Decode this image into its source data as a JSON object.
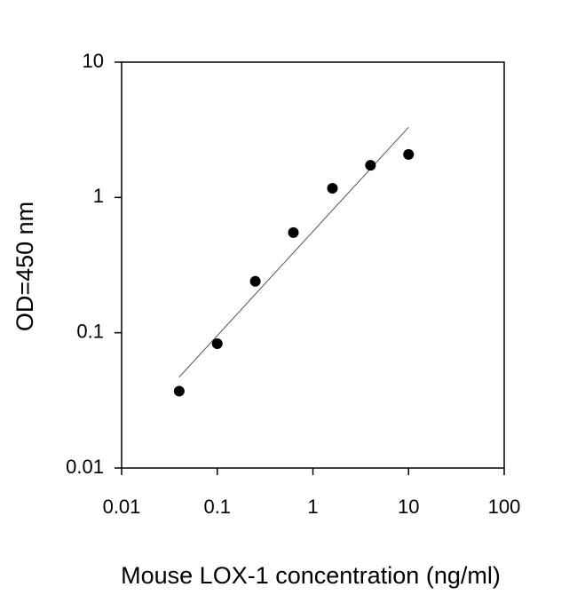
{
  "chart_data": {
    "type": "scatter",
    "x_label": "Mouse LOX-1 concentration (ng/ml)",
    "y_label": "OD=450 nm",
    "x": [
      0.04,
      0.1,
      0.25,
      0.625,
      1.6,
      4,
      10
    ],
    "values": [
      0.037,
      0.083,
      0.24,
      0.55,
      1.17,
      1.73,
      2.08
    ],
    "color": "#000000",
    "fit_line": {
      "x": [
        0.04,
        10
      ],
      "y": [
        0.047,
        3.3
      ],
      "color": "#555555"
    },
    "xscale": "log",
    "yscale": "log",
    "xlim": [
      0.01,
      100
    ],
    "ylim": [
      0.01,
      10
    ],
    "xticks": [
      0.01,
      0.1,
      1,
      10,
      100
    ],
    "yticks": [
      0.01,
      0.1,
      1,
      10
    ]
  }
}
